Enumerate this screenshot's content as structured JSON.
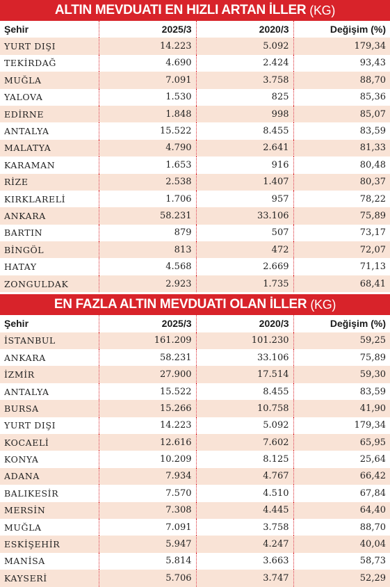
{
  "tables": [
    {
      "title": "ALTIN MEVDUATI EN HIZLI ARTAN İLLER",
      "unit": "(KG)",
      "headers": [
        "Şehir",
        "2025/3",
        "2020/3",
        "Değişim (%)"
      ],
      "rows": [
        [
          "YURT DIŞI",
          "14.223",
          "5.092",
          "179,34"
        ],
        [
          "TEKİRDAĞ",
          "4.690",
          "2.424",
          "93,43"
        ],
        [
          "MUĞLA",
          "7.091",
          "3.758",
          "88,70"
        ],
        [
          "YALOVA",
          "1.530",
          "825",
          "85,36"
        ],
        [
          "EDİRNE",
          "1.848",
          "998",
          "85,07"
        ],
        [
          "ANTALYA",
          "15.522",
          "8.455",
          "83,59"
        ],
        [
          "MALATYA",
          "4.790",
          "2.641",
          "81,33"
        ],
        [
          "KARAMAN",
          "1.653",
          "916",
          "80,48"
        ],
        [
          "RİZE",
          "2.538",
          "1.407",
          "80,37"
        ],
        [
          "KIRKLARELİ",
          "1.706",
          "957",
          "78,22"
        ],
        [
          "ANKARA",
          "58.231",
          "33.106",
          "75,89"
        ],
        [
          "BARTIN",
          "879",
          "507",
          "73,17"
        ],
        [
          "BİNGÖL",
          "813",
          "472",
          "72,07"
        ],
        [
          "HATAY",
          "4.568",
          "2.669",
          "71,13"
        ],
        [
          "ZONGULDAK",
          "2.923",
          "1.735",
          "68,41"
        ]
      ]
    },
    {
      "title": "EN FAZLA ALTIN MEVDUATI OLAN İLLER",
      "unit": "(KG)",
      "headers": [
        "Şehir",
        "2025/3",
        "2020/3",
        "Değişim (%)"
      ],
      "rows": [
        [
          "İSTANBUL",
          "161.209",
          "101.230",
          "59,25"
        ],
        [
          "ANKARA",
          "58.231",
          "33.106",
          "75,89"
        ],
        [
          "İZMİR",
          "27.900",
          "17.514",
          "59,30"
        ],
        [
          "ANTALYA",
          "15.522",
          "8.455",
          "83,59"
        ],
        [
          "BURSA",
          "15.266",
          "10.758",
          "41,90"
        ],
        [
          "YURT DIŞI",
          "14.223",
          "5.092",
          "179,34"
        ],
        [
          "KOCAELİ",
          "12.616",
          "7.602",
          "65,95"
        ],
        [
          "KONYA",
          "10.209",
          "8.125",
          "25,64"
        ],
        [
          "ADANA",
          "7.934",
          "4.767",
          "66,42"
        ],
        [
          "BALIKESİR",
          "7.570",
          "4.510",
          "67,84"
        ],
        [
          "MERSİN",
          "7.308",
          "4.445",
          "64,40"
        ],
        [
          "MUĞLA",
          "7.091",
          "3.758",
          "88,70"
        ],
        [
          "ESKİŞEHİR",
          "5.947",
          "4.247",
          "40,04"
        ],
        [
          "MANİSA",
          "5.814",
          "3.663",
          "58,73"
        ],
        [
          "KAYSERİ",
          "5.706",
          "3.747",
          "52,29"
        ]
      ]
    }
  ]
}
